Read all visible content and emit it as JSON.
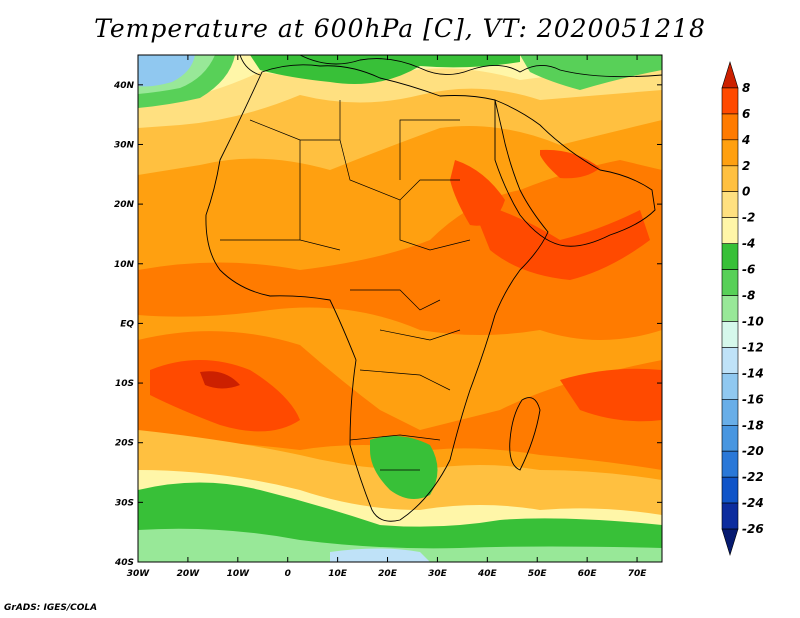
{
  "title": "Temperature at 600hPa [C], VT: 2020051218",
  "credit": "GrADS: IGES/COLA",
  "map": {
    "lat_labels": [
      "40N",
      "30N",
      "20N",
      "10N",
      "EQ",
      "10S",
      "20S",
      "30S",
      "40S"
    ],
    "lat_values": [
      40,
      30,
      20,
      10,
      0,
      -10,
      -20,
      -30,
      -40
    ],
    "lon_labels": [
      "30W",
      "20W",
      "10W",
      "0",
      "10E",
      "20E",
      "30E",
      "40E",
      "50E",
      "60E",
      "70E"
    ],
    "lon_values": [
      -30,
      -20,
      -10,
      0,
      10,
      20,
      30,
      40,
      50,
      60,
      70
    ],
    "lon_range": [
      -30,
      75
    ],
    "lat_range": [
      -40,
      45
    ]
  },
  "colorbar": {
    "labels": [
      "8",
      "6",
      "4",
      "2",
      "0",
      "-2",
      "-4",
      "-6",
      "-8",
      "-10",
      "-12",
      "-14",
      "-16",
      "-18",
      "-20",
      "-22",
      "-24",
      "-26"
    ],
    "colors": [
      "#cc2000",
      "#ff4a00",
      "#ff7b00",
      "#ffa010",
      "#ffc040",
      "#ffe080",
      "#fff6a8",
      "#38c038",
      "#58d058",
      "#98e898",
      "#d6f8ec",
      "#bfe2f8",
      "#90c8f0",
      "#68aee8",
      "#4896e0",
      "#2a78d8",
      "#1054c8",
      "#0c2c9e",
      "#061a70"
    ]
  }
}
